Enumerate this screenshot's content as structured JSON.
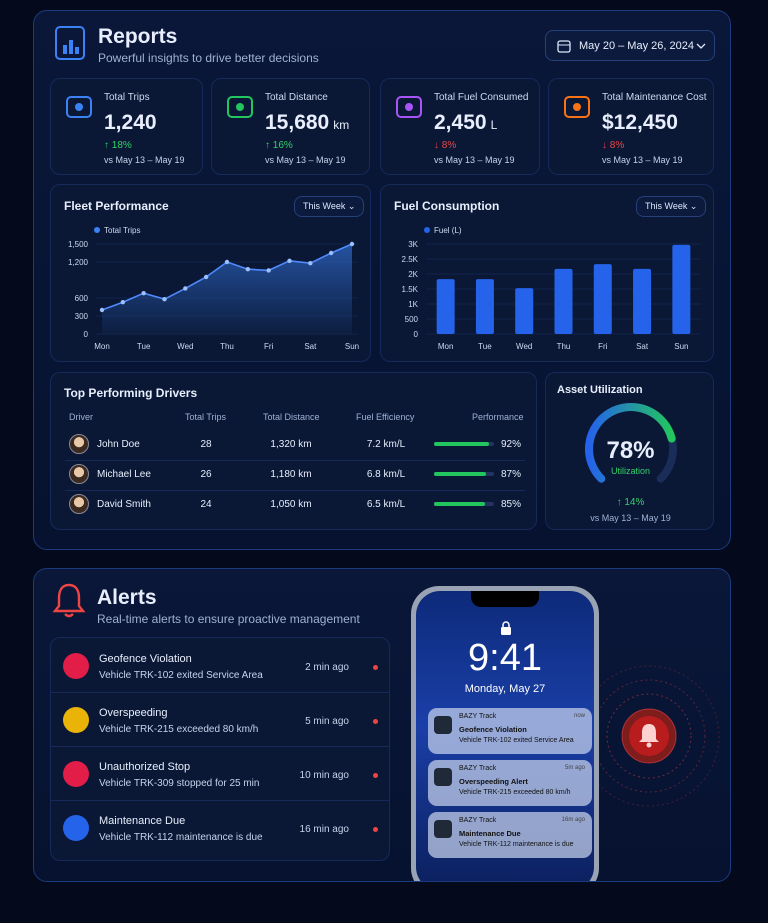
{
  "reports": {
    "title": "Reports",
    "subtitle": "Powerful insights to drive better decisions",
    "date_range": "May 20 – May 26, 2024",
    "kpis": [
      {
        "label": "Total Trips",
        "value": "1,240",
        "change": "↑ 18%",
        "comparison": "vs May 13 – May 19"
      },
      {
        "label": "Total Distance",
        "value": "15,680",
        "unit": "km",
        "change": "↑ 16%",
        "comparison": "vs May 13 – May 19"
      },
      {
        "label": "Total Fuel Consumed",
        "value": "2,450",
        "unit": "L",
        "change": "↓ 8%",
        "comparison": "vs May 13 – May 19"
      },
      {
        "label": "Total Maintenance Cost",
        "value": "$12,450",
        "change": "↓ 8%",
        "comparison": "vs May 13 – May 19"
      }
    ]
  },
  "chart_data": [
    {
      "type": "line",
      "title": "Fleet Performance",
      "period": "This Week",
      "categories": [
        "Mon",
        null,
        "Tue",
        null,
        "Wed",
        null,
        "Thu",
        null,
        "Fri",
        null,
        "Sat",
        null,
        "Sun"
      ],
      "series": [
        {
          "name": "Total Trips",
          "color": "#3b82f6",
          "values": [
            400,
            530,
            680,
            580,
            760,
            950,
            1200,
            1080,
            1060,
            1220,
            1180,
            1350,
            1500
          ]
        }
      ],
      "ylim": [
        0,
        1500
      ],
      "yticks": [
        0,
        300,
        600,
        {
          "value": 1200,
          "label": "1,200"
        },
        {
          "value": 1500,
          "label": "1,500"
        }
      ]
    },
    {
      "type": "bar",
      "title": "Fuel Consumption",
      "period": "This Week",
      "categories": [
        "Mon",
        "Tue",
        "Wed",
        "Thu",
        "Fri",
        "Sat",
        "Sun"
      ],
      "series": [
        {
          "name": "Fuel (L)",
          "color": "#2563eb",
          "values": [
            1830,
            1830,
            1530,
            2170,
            2330,
            2170,
            2970
          ]
        }
      ],
      "ylim": [
        0,
        3000
      ],
      "yticks": [
        0,
        500,
        {
          "value": 1000,
          "label": "1K"
        },
        {
          "value": 1500,
          "label": "1.5K"
        },
        {
          "value": 2000,
          "label": "2K"
        },
        {
          "value": 2500,
          "label": "2.5K"
        },
        {
          "value": 3000,
          "label": "3K"
        }
      ]
    }
  ],
  "drivers": {
    "title": "Top Performing Drivers",
    "columns": [
      "Driver",
      "Total Trips",
      "Total Distance",
      "Fuel Efficiency",
      "Performance"
    ],
    "rows": [
      {
        "name": "John Doe",
        "trips": "28",
        "distance": "1,320 km",
        "efficiency": "7.2 km/L",
        "performance": {
          "value": 92,
          "label": "92%"
        }
      },
      {
        "name": "Michael Lee",
        "trips": "26",
        "distance": "1,180 km",
        "efficiency": "6.8 km/L",
        "performance": {
          "value": 87,
          "label": "87%"
        }
      },
      {
        "name": "David Smith",
        "trips": "24",
        "distance": "1,050 km",
        "efficiency": "6.5 km/L",
        "performance": {
          "value": 85,
          "label": "85%"
        }
      }
    ]
  },
  "utilization": {
    "title": "Asset Utilization",
    "value": 78,
    "value_label": "78%",
    "caption": "Utilization",
    "change": "↑ 14%",
    "comparison": "vs May 13 – May 19"
  },
  "alerts": {
    "title": "Alerts",
    "subtitle": "Real-time alerts to ensure proactive management",
    "items": [
      {
        "title": "Geofence Violation",
        "detail": "Vehicle TRK-102 exited Service Area",
        "time": "2 min ago"
      },
      {
        "title": "Overspeeding",
        "detail": "Vehicle TRK-215 exceeded 80 km/h",
        "time": "5 min ago"
      },
      {
        "title": "Unauthorized Stop",
        "detail": "Vehicle TRK-309 stopped for 25 min",
        "time": "10 min ago"
      },
      {
        "title": "Maintenance Due",
        "detail": "Vehicle TRK-112 maintenance is due",
        "time": "16 min ago"
      }
    ]
  },
  "phone": {
    "time": "9:41",
    "date": "Monday, May 27",
    "notifications": [
      {
        "app": "BAZY Track",
        "time": "now",
        "title": "Geofence Violation",
        "detail": "Vehicle TRK-102 exited Service Area"
      },
      {
        "app": "BAZY Track",
        "time": "5m ago",
        "title": "Overspeeding Alert",
        "detail": "Vehicle TRK-215 exceeded 80 km/h"
      },
      {
        "app": "BAZY Track",
        "time": "16m ago",
        "title": "Maintenance Due",
        "detail": "Vehicle TRK-112 maintenance is due"
      }
    ]
  }
}
